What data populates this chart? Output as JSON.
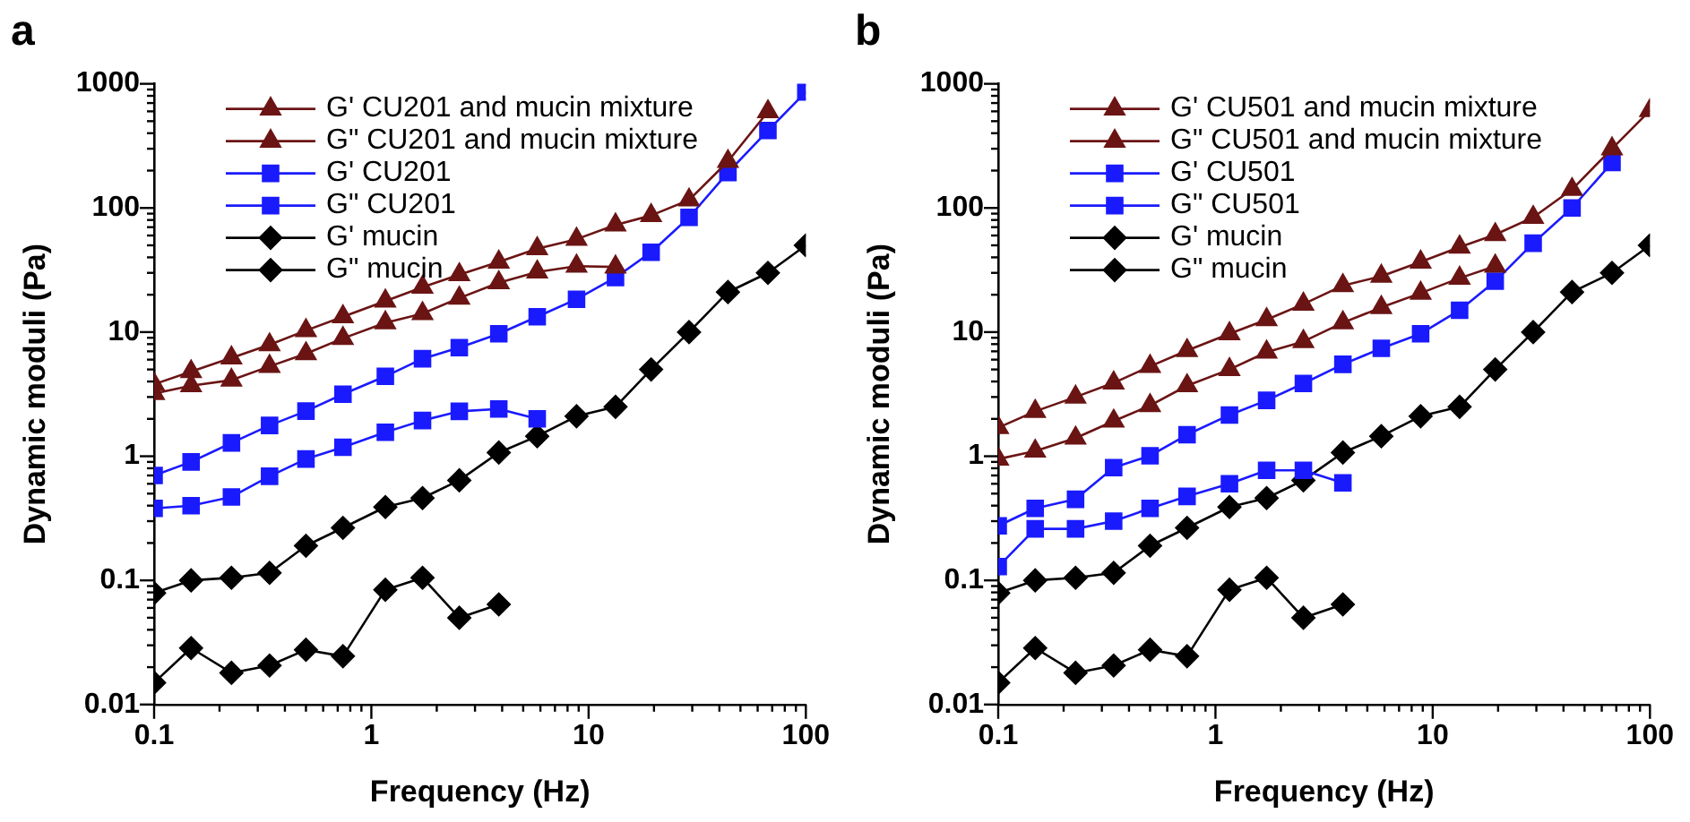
{
  "chart_data": [
    {
      "type": "line",
      "title": "a",
      "xlabel": "Frequency (Hz)",
      "ylabel": "Dynamic moduli (Pa)",
      "log": "xy",
      "grid": false,
      "legend": "top left",
      "line_style": "solid",
      "x": [
        0.1,
        0.148,
        0.227,
        0.34,
        0.5,
        0.74,
        1.16,
        1.72,
        2.54,
        3.86,
        5.8,
        8.8,
        13.3,
        19.4,
        29,
        43.8,
        66.9,
        100
      ],
      "xlim": [
        0.1,
        100
      ],
      "ylim": [
        0.01,
        1000
      ],
      "xticks": [
        0.1,
        {
          "value": 0.2,
          "label": null
        },
        {
          "value": 0.3,
          "label": null
        },
        {
          "value": 0.4,
          "label": null
        },
        {
          "value": 0.5,
          "label": null
        },
        {
          "value": 0.6,
          "label": null
        },
        {
          "value": 0.7,
          "label": null
        },
        {
          "value": 0.8,
          "label": null
        },
        {
          "value": 0.9,
          "label": null
        },
        1,
        {
          "value": 2,
          "label": null
        },
        {
          "value": 3,
          "label": null
        },
        {
          "value": 4,
          "label": null
        },
        {
          "value": 5,
          "label": null
        },
        {
          "value": 6,
          "label": null
        },
        {
          "value": 7,
          "label": null
        },
        {
          "value": 8,
          "label": null
        },
        {
          "value": 9,
          "label": null
        },
        10,
        {
          "value": 20,
          "label": null
        },
        {
          "value": 30,
          "label": null
        },
        {
          "value": 40,
          "label": null
        },
        {
          "value": 50,
          "label": null
        },
        {
          "value": 60,
          "label": null
        },
        {
          "value": 70,
          "label": null
        },
        {
          "value": 80,
          "label": null
        },
        {
          "value": 90,
          "label": null
        },
        100
      ],
      "yticks": [
        0.01,
        {
          "value": 0.02,
          "label": null
        },
        {
          "value": 0.03,
          "label": null
        },
        {
          "value": 0.04,
          "label": null
        },
        {
          "value": 0.05,
          "label": null
        },
        {
          "value": 0.06,
          "label": null
        },
        {
          "value": 0.07,
          "label": null
        },
        {
          "value": 0.08,
          "label": null
        },
        {
          "value": 0.09,
          "label": null
        },
        0.1,
        {
          "value": 0.2,
          "label": null
        },
        {
          "value": 0.3,
          "label": null
        },
        {
          "value": 0.4,
          "label": null
        },
        {
          "value": 0.5,
          "label": null
        },
        {
          "value": 0.6,
          "label": null
        },
        {
          "value": 0.7,
          "label": null
        },
        {
          "value": 0.8,
          "label": null
        },
        {
          "value": 0.9,
          "label": null
        },
        1,
        {
          "value": 2,
          "label": null
        },
        {
          "value": 3,
          "label": null
        },
        {
          "value": 4,
          "label": null
        },
        {
          "value": 5,
          "label": null
        },
        {
          "value": 6,
          "label": null
        },
        {
          "value": 7,
          "label": null
        },
        {
          "value": 8,
          "label": null
        },
        {
          "value": 9,
          "label": null
        },
        10,
        {
          "value": 20,
          "label": null
        },
        {
          "value": 30,
          "label": null
        },
        {
          "value": 40,
          "label": null
        },
        {
          "value": 50,
          "label": null
        },
        {
          "value": 60,
          "label": null
        },
        {
          "value": 70,
          "label": null
        },
        {
          "value": 80,
          "label": null
        },
        {
          "value": 90,
          "label": null
        },
        100,
        {
          "value": 200,
          "label": null
        },
        {
          "value": 300,
          "label": null
        },
        {
          "value": 400,
          "label": null
        },
        {
          "value": 500,
          "label": null
        },
        {
          "value": 600,
          "label": null
        },
        {
          "value": 700,
          "label": null
        },
        {
          "value": 800,
          "label": null
        },
        {
          "value": 900,
          "label": null
        },
        1000
      ],
      "series": [
        {
          "name": "G' CU201 and mucin mixture",
          "color": "#6b1414",
          "marker": "triangle",
          "values": [
            3.2,
            3.7,
            4.1,
            5.3,
            6.7,
            8.9,
            11.9,
            14.1,
            18.8,
            25,
            30.5,
            34,
            33.5,
            null,
            null,
            null,
            null,
            null
          ]
        },
        {
          "name": "G\" CU201 and mucin mixture",
          "color": "#6b1414",
          "marker": "triangle",
          "values": [
            3.8,
            4.8,
            6.2,
            7.9,
            10.3,
            13.3,
            17.8,
            23,
            29,
            36.7,
            47,
            56,
            73,
            87,
            116,
            237,
            596,
            null
          ]
        },
        {
          "name": "G' CU201",
          "color": "#1a1aff",
          "marker": "square",
          "values": [
            0.38,
            0.4,
            0.47,
            0.69,
            0.95,
            1.18,
            1.56,
            1.94,
            2.3,
            2.4,
            2.0,
            null,
            null,
            null,
            null,
            null,
            null,
            null
          ]
        },
        {
          "name": "G\" CU201",
          "color": "#1a1aff",
          "marker": "square",
          "values": [
            0.7,
            0.9,
            1.28,
            1.77,
            2.31,
            3.16,
            4.4,
            6.1,
            7.5,
            9.7,
            13.3,
            18.4,
            27.5,
            44,
            84,
            193,
            420,
            860
          ]
        },
        {
          "name": "G' mucin",
          "color": "#000000",
          "marker": "diamond",
          "values": [
            0.015,
            0.0285,
            0.018,
            0.0206,
            0.0276,
            0.0245,
            0.084,
            0.105,
            0.05,
            0.064,
            null,
            null,
            null,
            null,
            null,
            null,
            null,
            null
          ]
        },
        {
          "name": "G\" mucin",
          "color": "#000000",
          "marker": "diamond",
          "values": [
            0.079,
            0.1,
            0.105,
            0.115,
            0.19,
            0.265,
            0.39,
            0.46,
            0.64,
            1.07,
            1.45,
            2.1,
            2.5,
            5,
            10,
            21,
            30,
            50
          ]
        }
      ]
    },
    {
      "type": "line",
      "title": "b",
      "xlabel": "Frequency (Hz)",
      "ylabel": "Dynamic moduli (Pa)",
      "log": "xy",
      "grid": false,
      "legend": "top left",
      "line_style": "solid",
      "x": [
        0.1,
        0.148,
        0.227,
        0.34,
        0.5,
        0.74,
        1.16,
        1.72,
        2.54,
        3.86,
        5.8,
        8.8,
        13.3,
        19.4,
        29,
        43.8,
        66.9,
        100
      ],
      "xlim": [
        0.1,
        100
      ],
      "ylim": [
        0.01,
        1000
      ],
      "xticks": [
        0.1,
        {
          "value": 0.2,
          "label": null
        },
        {
          "value": 0.3,
          "label": null
        },
        {
          "value": 0.4,
          "label": null
        },
        {
          "value": 0.5,
          "label": null
        },
        {
          "value": 0.6,
          "label": null
        },
        {
          "value": 0.7,
          "label": null
        },
        {
          "value": 0.8,
          "label": null
        },
        {
          "value": 0.9,
          "label": null
        },
        1,
        {
          "value": 2,
          "label": null
        },
        {
          "value": 3,
          "label": null
        },
        {
          "value": 4,
          "label": null
        },
        {
          "value": 5,
          "label": null
        },
        {
          "value": 6,
          "label": null
        },
        {
          "value": 7,
          "label": null
        },
        {
          "value": 8,
          "label": null
        },
        {
          "value": 9,
          "label": null
        },
        10,
        {
          "value": 20,
          "label": null
        },
        {
          "value": 30,
          "label": null
        },
        {
          "value": 40,
          "label": null
        },
        {
          "value": 50,
          "label": null
        },
        {
          "value": 60,
          "label": null
        },
        {
          "value": 70,
          "label": null
        },
        {
          "value": 80,
          "label": null
        },
        {
          "value": 90,
          "label": null
        },
        100
      ],
      "yticks": [
        0.01,
        {
          "value": 0.02,
          "label": null
        },
        {
          "value": 0.03,
          "label": null
        },
        {
          "value": 0.04,
          "label": null
        },
        {
          "value": 0.05,
          "label": null
        },
        {
          "value": 0.06,
          "label": null
        },
        {
          "value": 0.07,
          "label": null
        },
        {
          "value": 0.08,
          "label": null
        },
        {
          "value": 0.09,
          "label": null
        },
        0.1,
        {
          "value": 0.2,
          "label": null
        },
        {
          "value": 0.3,
          "label": null
        },
        {
          "value": 0.4,
          "label": null
        },
        {
          "value": 0.5,
          "label": null
        },
        {
          "value": 0.6,
          "label": null
        },
        {
          "value": 0.7,
          "label": null
        },
        {
          "value": 0.8,
          "label": null
        },
        {
          "value": 0.9,
          "label": null
        },
        1,
        {
          "value": 2,
          "label": null
        },
        {
          "value": 3,
          "label": null
        },
        {
          "value": 4,
          "label": null
        },
        {
          "value": 5,
          "label": null
        },
        {
          "value": 6,
          "label": null
        },
        {
          "value": 7,
          "label": null
        },
        {
          "value": 8,
          "label": null
        },
        {
          "value": 9,
          "label": null
        },
        10,
        {
          "value": 20,
          "label": null
        },
        {
          "value": 30,
          "label": null
        },
        {
          "value": 40,
          "label": null
        },
        {
          "value": 50,
          "label": null
        },
        {
          "value": 60,
          "label": null
        },
        {
          "value": 70,
          "label": null
        },
        {
          "value": 80,
          "label": null
        },
        {
          "value": 90,
          "label": null
        },
        100,
        {
          "value": 200,
          "label": null
        },
        {
          "value": 300,
          "label": null
        },
        {
          "value": 400,
          "label": null
        },
        {
          "value": 500,
          "label": null
        },
        {
          "value": 600,
          "label": null
        },
        {
          "value": 700,
          "label": null
        },
        {
          "value": 800,
          "label": null
        },
        {
          "value": 900,
          "label": null
        },
        1000
      ],
      "series": [
        {
          "name": "G' CU501 and mucin mixture",
          "color": "#6b1414",
          "marker": "triangle",
          "values": [
            0.95,
            1.1,
            1.4,
            1.92,
            2.56,
            3.7,
            5.0,
            6.9,
            8.4,
            11.9,
            15.8,
            20.6,
            27.2,
            34,
            null,
            null,
            null,
            null
          ]
        },
        {
          "name": "G\" CU501 and mucin mixture",
          "color": "#6b1414",
          "marker": "triangle",
          "values": [
            1.7,
            2.3,
            3.0,
            3.9,
            5.3,
            7.1,
            9.7,
            12.6,
            16.8,
            23.7,
            28.2,
            36.7,
            48.4,
            61,
            84,
            141,
            300,
            610
          ]
        },
        {
          "name": "G' CU501",
          "color": "#1a1aff",
          "marker": "square",
          "values": [
            0.129,
            0.26,
            0.26,
            0.3,
            0.38,
            0.475,
            0.6,
            0.77,
            0.77,
            0.61,
            null,
            null,
            null,
            null,
            null,
            null,
            null,
            null
          ]
        },
        {
          "name": "G\" CU501",
          "color": "#1a1aff",
          "marker": "square",
          "values": [
            0.275,
            0.38,
            0.45,
            0.81,
            1.01,
            1.49,
            2.15,
            2.82,
            3.86,
            5.5,
            7.4,
            9.7,
            15,
            25.7,
            52,
            100,
            232,
            null
          ]
        },
        {
          "name": "G' mucin",
          "color": "#000000",
          "marker": "diamond",
          "values": [
            0.015,
            0.0285,
            0.018,
            0.0206,
            0.0276,
            0.0245,
            0.084,
            0.105,
            0.05,
            0.064,
            null,
            null,
            null,
            null,
            null,
            null,
            null,
            null
          ]
        },
        {
          "name": "G\" mucin",
          "color": "#000000",
          "marker": "diamond",
          "values": [
            0.079,
            0.1,
            0.105,
            0.115,
            0.19,
            0.265,
            0.39,
            0.46,
            0.64,
            1.07,
            1.45,
            2.1,
            2.5,
            5,
            10,
            21,
            30,
            50
          ]
        }
      ]
    }
  ]
}
